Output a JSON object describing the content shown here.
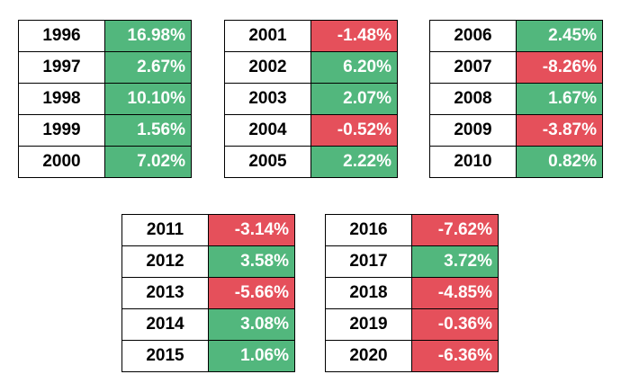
{
  "colors": {
    "positive": "#52b77d",
    "negative": "#e5505b"
  },
  "tables": [
    {
      "rows": [
        {
          "year": "1996",
          "value": "16.98%",
          "sign": "pos"
        },
        {
          "year": "1997",
          "value": "2.67%",
          "sign": "pos"
        },
        {
          "year": "1998",
          "value": "10.10%",
          "sign": "pos"
        },
        {
          "year": "1999",
          "value": "1.56%",
          "sign": "pos"
        },
        {
          "year": "2000",
          "value": "7.02%",
          "sign": "pos"
        }
      ]
    },
    {
      "rows": [
        {
          "year": "2001",
          "value": "-1.48%",
          "sign": "neg"
        },
        {
          "year": "2002",
          "value": "6.20%",
          "sign": "pos"
        },
        {
          "year": "2003",
          "value": "2.07%",
          "sign": "pos"
        },
        {
          "year": "2004",
          "value": "-0.52%",
          "sign": "neg"
        },
        {
          "year": "2005",
          "value": "2.22%",
          "sign": "pos"
        }
      ]
    },
    {
      "rows": [
        {
          "year": "2006",
          "value": "2.45%",
          "sign": "pos"
        },
        {
          "year": "2007",
          "value": "-8.26%",
          "sign": "neg"
        },
        {
          "year": "2008",
          "value": "1.67%",
          "sign": "pos"
        },
        {
          "year": "2009",
          "value": "-3.87%",
          "sign": "neg"
        },
        {
          "year": "2010",
          "value": "0.82%",
          "sign": "pos"
        }
      ]
    },
    {
      "rows": [
        {
          "year": "2011",
          "value": "-3.14%",
          "sign": "neg"
        },
        {
          "year": "2012",
          "value": "3.58%",
          "sign": "pos"
        },
        {
          "year": "2013",
          "value": "-5.66%",
          "sign": "neg"
        },
        {
          "year": "2014",
          "value": "3.08%",
          "sign": "pos"
        },
        {
          "year": "2015",
          "value": "1.06%",
          "sign": "pos"
        }
      ]
    },
    {
      "rows": [
        {
          "year": "2016",
          "value": "-7.62%",
          "sign": "neg"
        },
        {
          "year": "2017",
          "value": "3.72%",
          "sign": "pos"
        },
        {
          "year": "2018",
          "value": "-4.85%",
          "sign": "neg"
        },
        {
          "year": "2019",
          "value": "-0.36%",
          "sign": "neg"
        },
        {
          "year": "2020",
          "value": "-6.36%",
          "sign": "neg"
        }
      ]
    }
  ]
}
